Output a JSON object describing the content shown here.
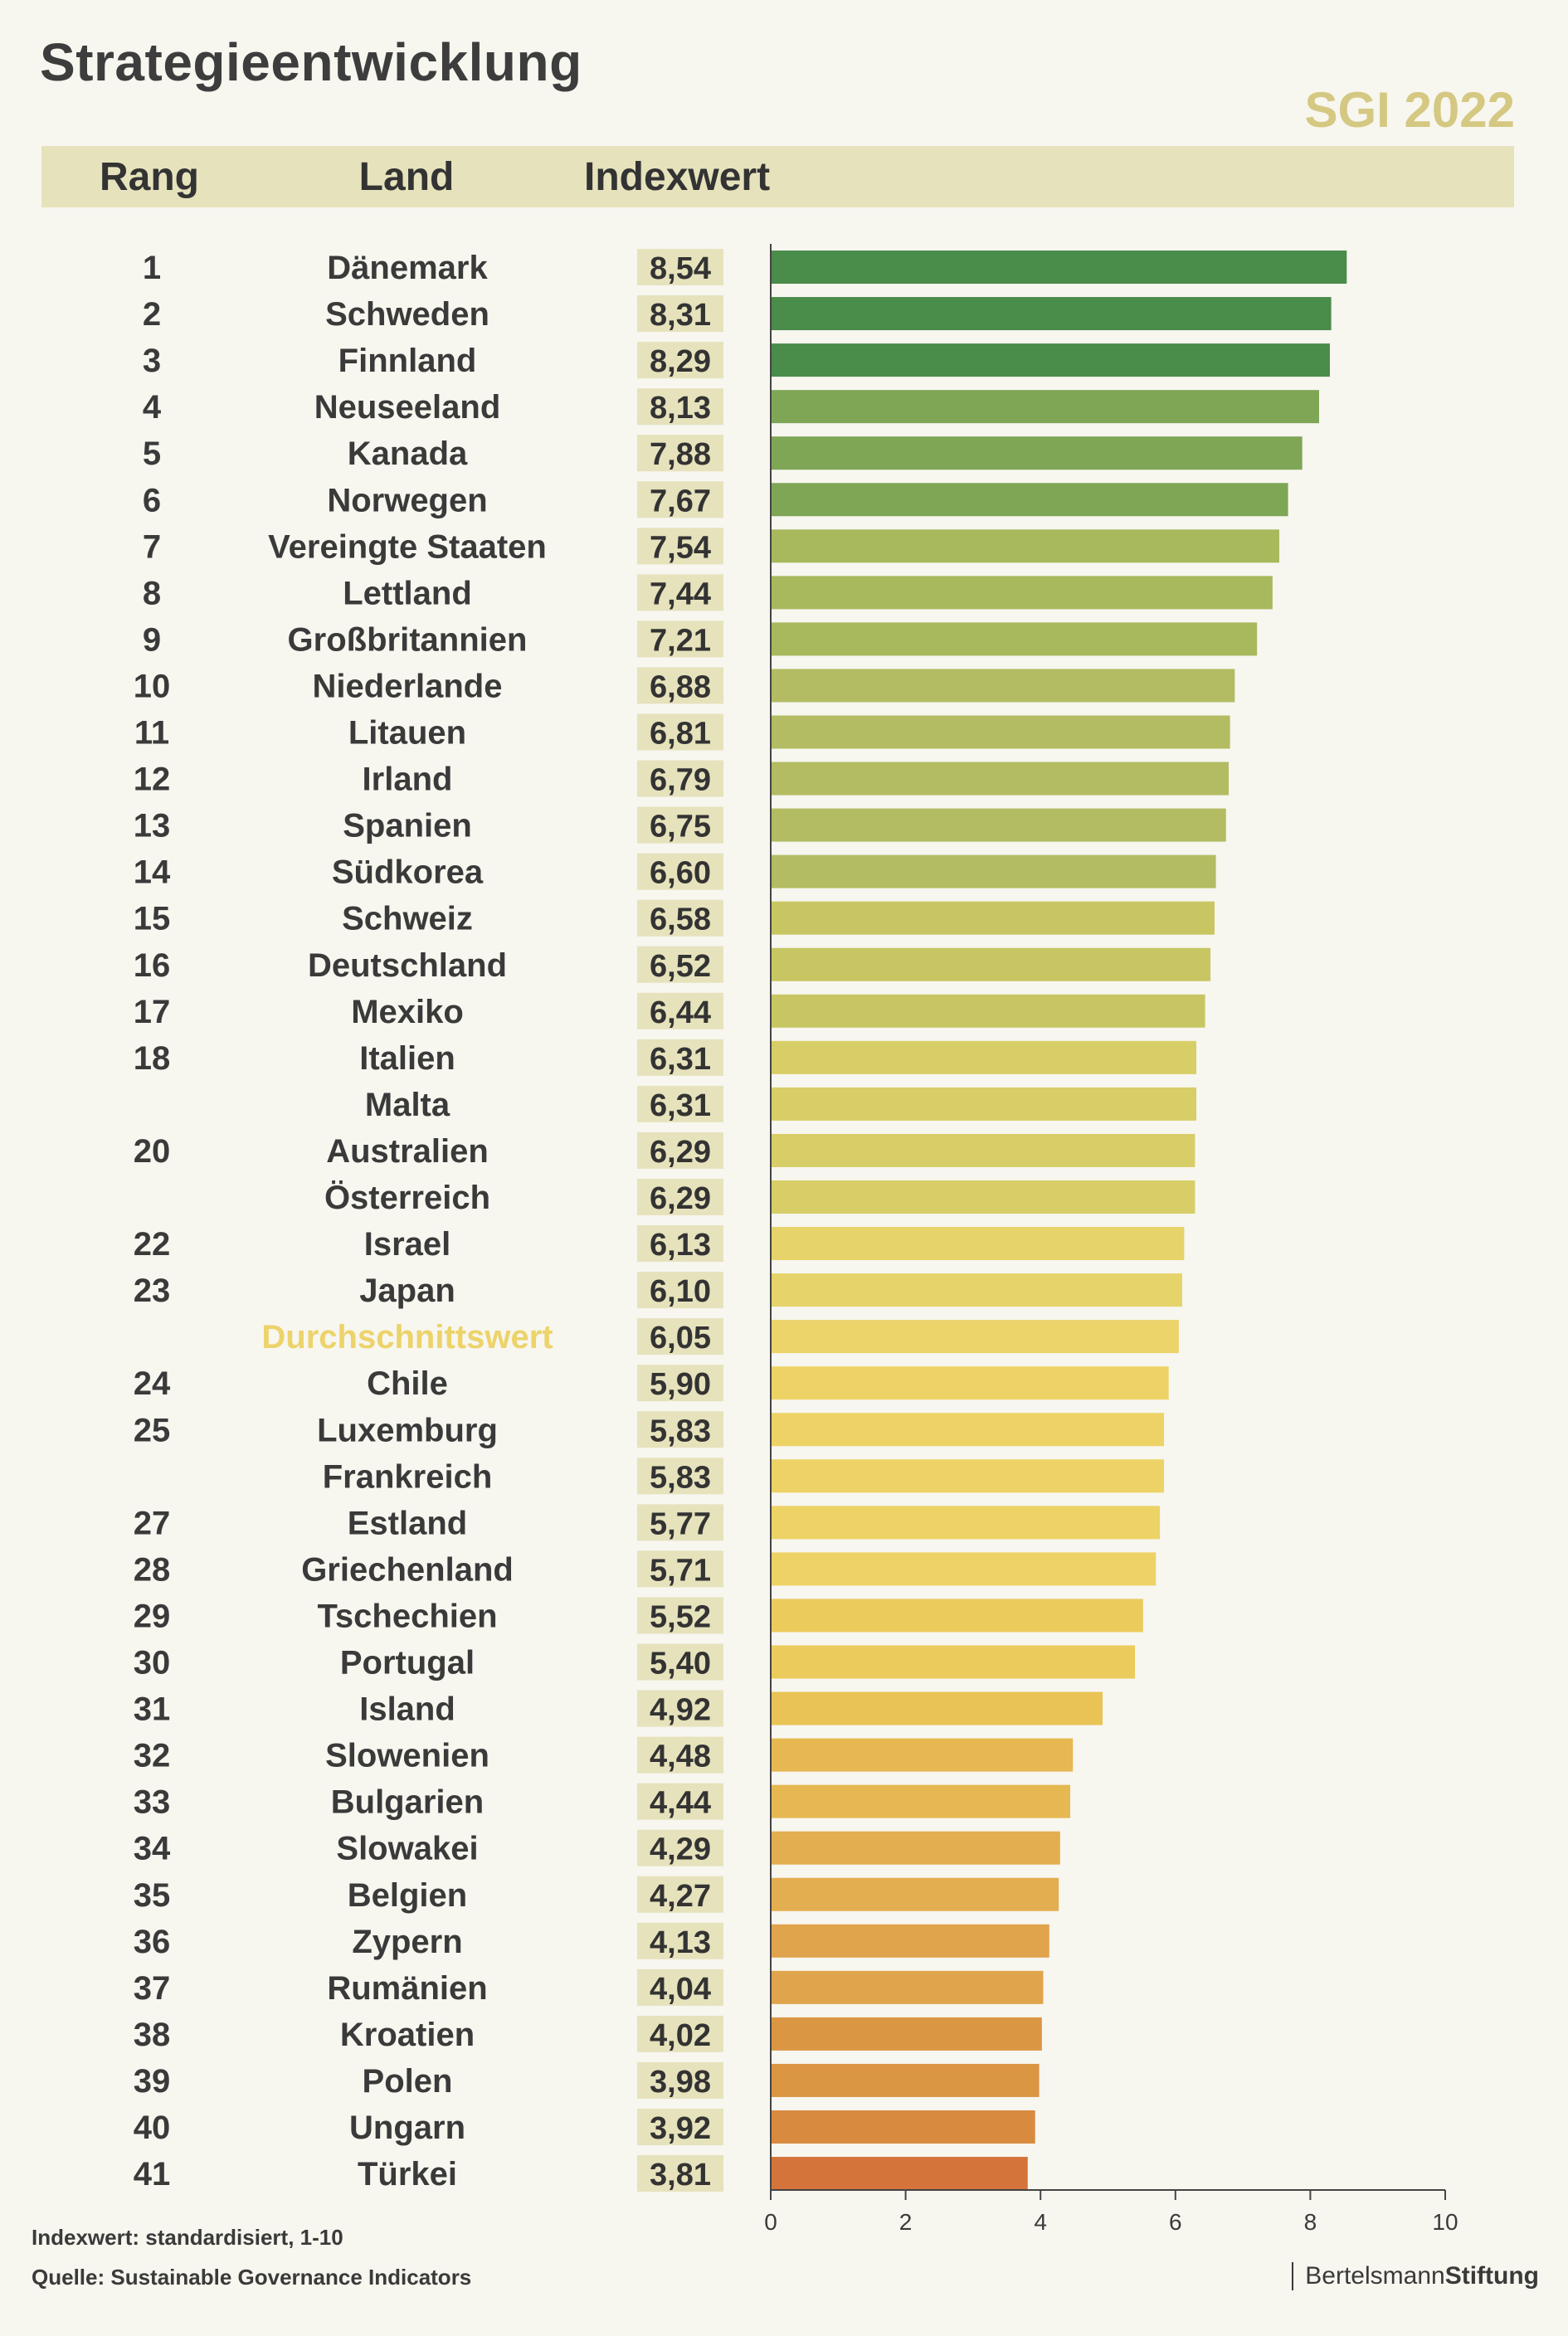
{
  "title": "Strategieentwicklung",
  "edition": "SGI 2022",
  "headers": {
    "rank": "Rang",
    "country": "Land",
    "index": "Indexwert"
  },
  "footnotes": {
    "scale": "Indexwert: standardisiert, 1-10",
    "source": "Quelle: Sustainable Governance Indicators"
  },
  "brand": {
    "part1": "Bertelsmann",
    "part2": "Stiftung"
  },
  "colors": {
    "background": "#f7f6ef",
    "header_band": "#e6e2bc",
    "value_label_bg": "#e6e2bc",
    "average_label": "#ecd36a",
    "edition": "#d4c882"
  },
  "chart_data": {
    "type": "bar",
    "orientation": "horizontal",
    "xlim": [
      0,
      10
    ],
    "xticks": [
      "0",
      "2",
      "4",
      "6",
      "8",
      "10"
    ],
    "rows": [
      {
        "rank": "1",
        "country": "Dänemark",
        "value": 8.54,
        "label": "8,54",
        "color": "#4a8c4a"
      },
      {
        "rank": "2",
        "country": "Schweden",
        "value": 8.31,
        "label": "8,31",
        "color": "#4a8c4a"
      },
      {
        "rank": "3",
        "country": "Finnland",
        "value": 8.29,
        "label": "8,29",
        "color": "#4a8c4a"
      },
      {
        "rank": "4",
        "country": "Neuseeland",
        "value": 8.13,
        "label": "8,13",
        "color": "#7ea655"
      },
      {
        "rank": "5",
        "country": "Kanada",
        "value": 7.88,
        "label": "7,88",
        "color": "#7ea655"
      },
      {
        "rank": "6",
        "country": "Norwegen",
        "value": 7.67,
        "label": "7,67",
        "color": "#7ea655"
      },
      {
        "rank": "7",
        "country": "Vereingte Staaten",
        "value": 7.54,
        "label": "7,54",
        "color": "#a7b95c"
      },
      {
        "rank": "8",
        "country": "Lettland",
        "value": 7.44,
        "label": "7,44",
        "color": "#a7b95c"
      },
      {
        "rank": "9",
        "country": "Großbritannien",
        "value": 7.21,
        "label": "7,21",
        "color": "#a7b95c"
      },
      {
        "rank": "10",
        "country": "Niederlande",
        "value": 6.88,
        "label": "6,88",
        "color": "#b3bc62"
      },
      {
        "rank": "11",
        "country": "Litauen",
        "value": 6.81,
        "label": "6,81",
        "color": "#b3bc62"
      },
      {
        "rank": "12",
        "country": "Irland",
        "value": 6.79,
        "label": "6,79",
        "color": "#b3bc62"
      },
      {
        "rank": "13",
        "country": "Spanien",
        "value": 6.75,
        "label": "6,75",
        "color": "#b3bc62"
      },
      {
        "rank": "14",
        "country": "Südkorea",
        "value": 6.6,
        "label": "6,60",
        "color": "#b3bc62"
      },
      {
        "rank": "15",
        "country": "Schweiz",
        "value": 6.58,
        "label": "6,58",
        "color": "#c8c663"
      },
      {
        "rank": "16",
        "country": "Deutschland",
        "value": 6.52,
        "label": "6,52",
        "color": "#c8c663"
      },
      {
        "rank": "17",
        "country": "Mexiko",
        "value": 6.44,
        "label": "6,44",
        "color": "#c8c663"
      },
      {
        "rank": "18",
        "country": "Italien",
        "value": 6.31,
        "label": "6,31",
        "color": "#d7ce67"
      },
      {
        "rank": "",
        "country": "Malta",
        "value": 6.31,
        "label": "6,31",
        "color": "#d7ce67"
      },
      {
        "rank": "20",
        "country": "Australien",
        "value": 6.29,
        "label": "6,29",
        "color": "#d7ce67"
      },
      {
        "rank": "",
        "country": "Österreich",
        "value": 6.29,
        "label": "6,29",
        "color": "#d7ce67"
      },
      {
        "rank": "22",
        "country": "Israel",
        "value": 6.13,
        "label": "6,13",
        "color": "#e6d36a"
      },
      {
        "rank": "23",
        "country": "Japan",
        "value": 6.1,
        "label": "6,10",
        "color": "#e6d36a"
      },
      {
        "rank": "",
        "country": "Durchschnittswert",
        "value": 6.05,
        "label": "6,05",
        "color": "#ecd36a",
        "average": true
      },
      {
        "rank": "24",
        "country": "Chile",
        "value": 5.9,
        "label": "5,90",
        "color": "#edd265"
      },
      {
        "rank": "25",
        "country": "Luxemburg",
        "value": 5.83,
        "label": "5,83",
        "color": "#edd265"
      },
      {
        "rank": "",
        "country": "Frankreich",
        "value": 5.83,
        "label": "5,83",
        "color": "#edd265"
      },
      {
        "rank": "27",
        "country": "Estland",
        "value": 5.77,
        "label": "5,77",
        "color": "#edd265"
      },
      {
        "rank": "28",
        "country": "Griechenland",
        "value": 5.71,
        "label": "5,71",
        "color": "#edd265"
      },
      {
        "rank": "29",
        "country": "Tschechien",
        "value": 5.52,
        "label": "5,52",
        "color": "#ebcb5b"
      },
      {
        "rank": "30",
        "country": "Portugal",
        "value": 5.4,
        "label": "5,40",
        "color": "#ebcb5b"
      },
      {
        "rank": "31",
        "country": "Island",
        "value": 4.92,
        "label": "4,92",
        "color": "#e9c355"
      },
      {
        "rank": "32",
        "country": "Slowenien",
        "value": 4.48,
        "label": "4,48",
        "color": "#e6b852"
      },
      {
        "rank": "33",
        "country": "Bulgarien",
        "value": 4.44,
        "label": "4,44",
        "color": "#e6b852"
      },
      {
        "rank": "34",
        "country": "Slowakei",
        "value": 4.29,
        "label": "4,29",
        "color": "#e3ae50"
      },
      {
        "rank": "35",
        "country": "Belgien",
        "value": 4.27,
        "label": "4,27",
        "color": "#e3ae50"
      },
      {
        "rank": "36",
        "country": "Zypern",
        "value": 4.13,
        "label": "4,13",
        "color": "#e0a44d"
      },
      {
        "rank": "37",
        "country": "Rumänien",
        "value": 4.04,
        "label": "4,04",
        "color": "#e0a44d"
      },
      {
        "rank": "38",
        "country": "Kroatien",
        "value": 4.02,
        "label": "4,02",
        "color": "#db9644"
      },
      {
        "rank": "39",
        "country": "Polen",
        "value": 3.98,
        "label": "3,98",
        "color": "#db9644"
      },
      {
        "rank": "40",
        "country": "Ungarn",
        "value": 3.92,
        "label": "3,92",
        "color": "#d88a3f"
      },
      {
        "rank": "41",
        "country": "Türkei",
        "value": 3.81,
        "label": "3,81",
        "color": "#d4733a"
      }
    ]
  }
}
